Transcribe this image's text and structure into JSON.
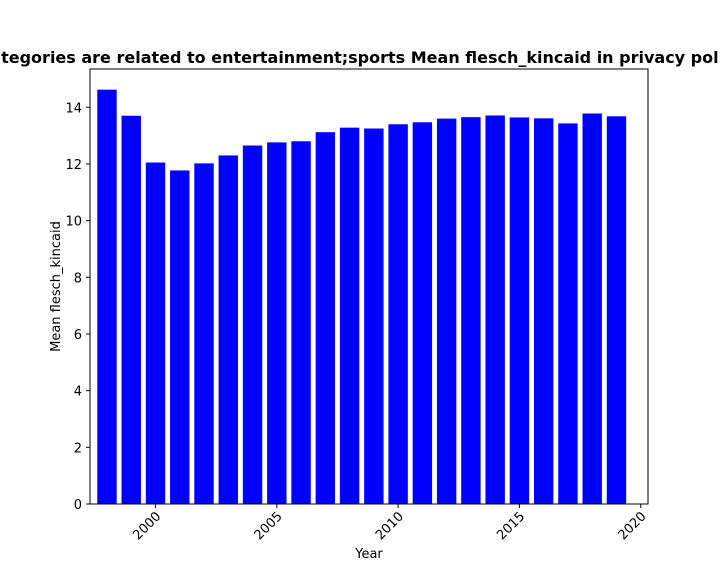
{
  "chart_data": {
    "type": "bar",
    "title": "Categories are related to entertainment;sports Mean flesch_kincaid in privacy policies",
    "xlabel": "Year",
    "ylabel": "Mean flesch_kincaid",
    "x": [
      1998,
      1999,
      2000,
      2001,
      2002,
      2003,
      2004,
      2005,
      2006,
      2007,
      2008,
      2009,
      2010,
      2011,
      2012,
      2013,
      2014,
      2015,
      2016,
      2017,
      2018,
      2019
    ],
    "values": [
      14.62,
      13.7,
      12.05,
      11.77,
      12.02,
      12.3,
      12.65,
      12.76,
      12.8,
      13.12,
      13.28,
      13.25,
      13.4,
      13.47,
      13.6,
      13.65,
      13.71,
      13.64,
      13.61,
      13.43,
      13.78,
      13.68
    ],
    "color": "#0000ff",
    "xlim": [
      1997.3,
      2020.3
    ],
    "ylim": [
      0,
      15.35
    ],
    "xticks": [
      2000,
      2005,
      2010,
      2015,
      2020
    ],
    "yticks": [
      0,
      2,
      4,
      6,
      8,
      10,
      12,
      14
    ],
    "xtick_rotation": 45,
    "grid": false,
    "legend": false
  }
}
